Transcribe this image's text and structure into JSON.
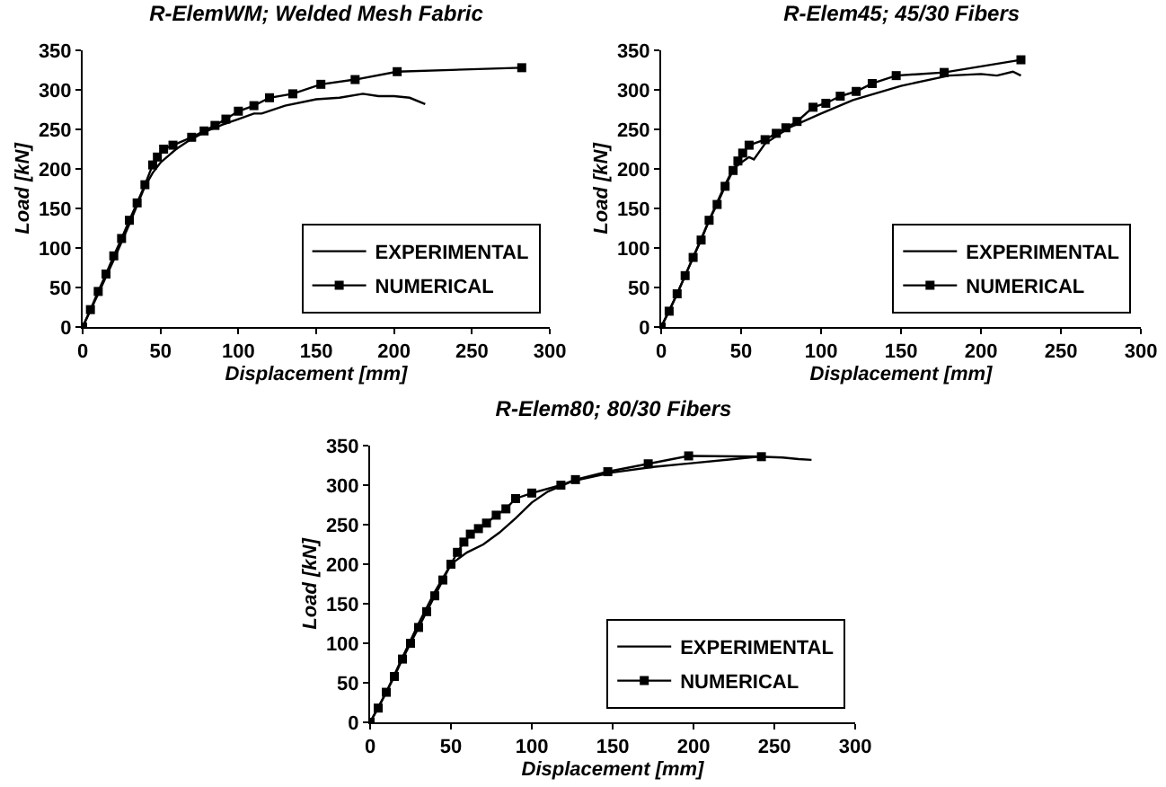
{
  "chart_data": [
    {
      "type": "line",
      "title": "R-ElemWM; Welded Mesh Fabric",
      "xlabel": "Displacement [mm]",
      "ylabel": "Load [kN]",
      "xlim": [
        0,
        300
      ],
      "ylim": [
        0,
        350
      ],
      "xticks": [
        0,
        50,
        100,
        150,
        200,
        250,
        300
      ],
      "yticks": [
        0,
        50,
        100,
        150,
        200,
        250,
        300,
        350
      ],
      "grid": false,
      "legend": "bottom right",
      "series": [
        {
          "name": "EXPERIMENTAL",
          "color": "#000000",
          "marker": "none",
          "x": [
            0,
            10,
            20,
            30,
            40,
            45,
            50,
            60,
            70,
            80,
            90,
            100,
            110,
            115,
            130,
            150,
            165,
            180,
            190,
            200,
            210,
            220
          ],
          "values": [
            0,
            42,
            85,
            130,
            178,
            195,
            208,
            225,
            238,
            248,
            256,
            263,
            270,
            270,
            280,
            288,
            290,
            295,
            292,
            292,
            290,
            282
          ]
        },
        {
          "name": "NUMERICAL",
          "color": "#000000",
          "marker": "square",
          "x": [
            0,
            5,
            10,
            15,
            20,
            25,
            30,
            35,
            40,
            45,
            48,
            52,
            58,
            70,
            78,
            85,
            92,
            100,
            110,
            120,
            135,
            153,
            175,
            202,
            282
          ],
          "values": [
            0,
            22,
            45,
            67,
            90,
            112,
            135,
            157,
            180,
            205,
            215,
            225,
            230,
            240,
            248,
            255,
            263,
            273,
            280,
            290,
            295,
            307,
            313,
            323,
            328
          ]
        }
      ]
    },
    {
      "type": "line",
      "title": "R-Elem45; 45/30 Fibers",
      "xlabel": "Displacement [mm]",
      "ylabel": "Load [kN]",
      "xlim": [
        0,
        300
      ],
      "ylim": [
        0,
        350
      ],
      "xticks": [
        0,
        50,
        100,
        150,
        200,
        250,
        300
      ],
      "yticks": [
        0,
        50,
        100,
        150,
        200,
        250,
        300,
        350
      ],
      "grid": false,
      "legend": "bottom right",
      "series": [
        {
          "name": "EXPERIMENTAL",
          "color": "#000000",
          "marker": "none",
          "x": [
            0,
            10,
            20,
            30,
            40,
            45,
            50,
            55,
            58,
            65,
            80,
            100,
            120,
            150,
            180,
            200,
            210,
            220,
            225
          ],
          "values": [
            0,
            42,
            88,
            135,
            180,
            200,
            208,
            215,
            212,
            232,
            252,
            270,
            287,
            305,
            318,
            320,
            318,
            323,
            318
          ]
        },
        {
          "name": "NUMERICAL",
          "color": "#000000",
          "marker": "square",
          "x": [
            0,
            5,
            10,
            15,
            20,
            25,
            30,
            35,
            40,
            45,
            48,
            51,
            55,
            65,
            72,
            78,
            85,
            95,
            103,
            112,
            122,
            132,
            147,
            177,
            225
          ],
          "values": [
            0,
            20,
            42,
            65,
            88,
            110,
            135,
            155,
            178,
            198,
            210,
            220,
            230,
            237,
            245,
            252,
            260,
            278,
            283,
            292,
            298,
            308,
            318,
            322,
            338
          ]
        }
      ]
    },
    {
      "type": "line",
      "title": "R-Elem80; 80/30 Fibers",
      "xlabel": "Displacement [mm]",
      "ylabel": "Load [kN]",
      "xlim": [
        0,
        300
      ],
      "ylim": [
        0,
        350
      ],
      "xticks": [
        0,
        50,
        100,
        150,
        200,
        250,
        300
      ],
      "yticks": [
        0,
        50,
        100,
        150,
        200,
        250,
        300,
        350
      ],
      "grid": false,
      "legend": "bottom right",
      "series": [
        {
          "name": "EXPERIMENTAL",
          "color": "#000000",
          "marker": "none",
          "x": [
            0,
            10,
            20,
            30,
            40,
            50,
            60,
            70,
            80,
            90,
            100,
            110,
            125,
            150,
            175,
            200,
            225,
            240,
            255,
            265,
            273
          ],
          "values": [
            0,
            38,
            82,
            125,
            165,
            200,
            215,
            225,
            240,
            258,
            278,
            292,
            305,
            316,
            323,
            328,
            333,
            336,
            335,
            333,
            332
          ]
        },
        {
          "name": "NUMERICAL",
          "color": "#000000",
          "marker": "square",
          "x": [
            0,
            5,
            10,
            15,
            20,
            25,
            30,
            35,
            40,
            45,
            50,
            54,
            58,
            62,
            67,
            72,
            78,
            84,
            90,
            100,
            118,
            127,
            147,
            172,
            197,
            242
          ],
          "values": [
            0,
            18,
            38,
            58,
            80,
            100,
            120,
            140,
            160,
            180,
            200,
            215,
            228,
            238,
            245,
            252,
            262,
            270,
            283,
            290,
            300,
            307,
            317,
            327,
            337,
            336
          ]
        }
      ]
    }
  ]
}
